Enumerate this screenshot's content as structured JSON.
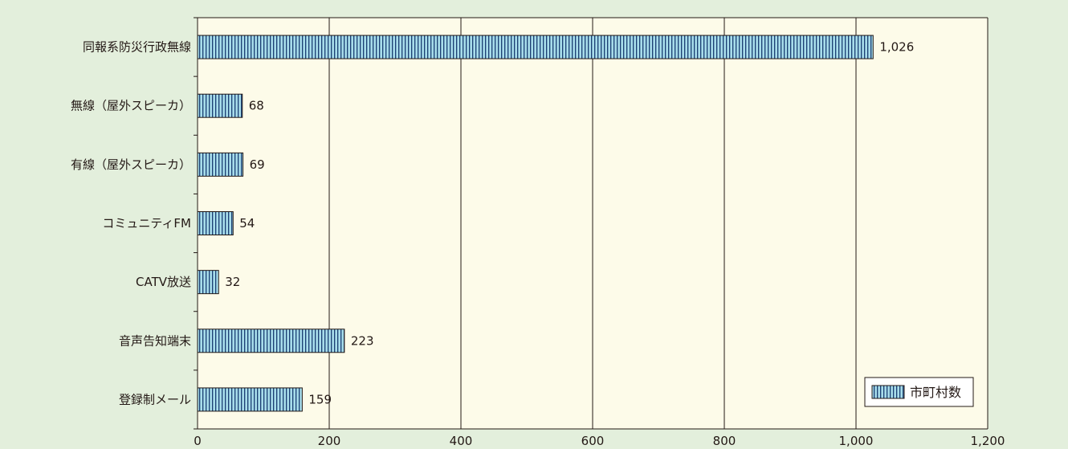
{
  "chart_data": {
    "type": "bar",
    "orientation": "horizontal",
    "categories": [
      "同報系防災行政無線",
      "無線（屋外スピーカ）",
      "有線（屋外スピーカ）",
      "コミュニティFM",
      "CATV放送",
      "音声告知端末",
      "登録制メール"
    ],
    "series": [
      {
        "name": "市町村数",
        "values": [
          1026,
          68,
          69,
          54,
          32,
          223,
          159
        ]
      }
    ],
    "data_labels": [
      "1,026",
      "68",
      "69",
      "54",
      "32",
      "223",
      "159"
    ],
    "xlim": [
      0,
      1200
    ],
    "xticks": [
      0,
      200,
      400,
      600,
      800,
      1000,
      1200
    ],
    "xtick_labels": [
      "0",
      "200",
      "400",
      "600",
      "800",
      "1,000",
      "1,200"
    ],
    "grid": "vertical",
    "legend_position": "bottom-right",
    "colors": {
      "page_background": "#e3efdc",
      "plot_background": "#fdfbe9",
      "bar_fill": "#a7dcea",
      "bar_stripe": "#1a3e72",
      "axis": "#231815"
    }
  }
}
